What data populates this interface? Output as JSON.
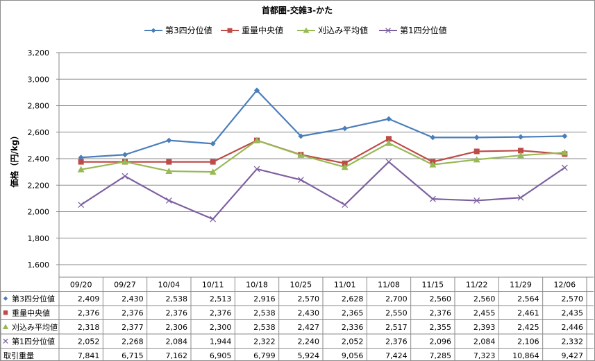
{
  "chart_data": {
    "type": "line",
    "title": "首都圏-交雑3-かた",
    "ylabel": "価格（円/kg）",
    "ylim": [
      1600,
      3200
    ],
    "ystep": 200,
    "yticks": [
      "1,600",
      "1,800",
      "2,000",
      "2,200",
      "2,400",
      "2,600",
      "2,800",
      "3,000",
      "3,200"
    ],
    "grid": true,
    "legend_position": "top",
    "categories": [
      "09/20",
      "09/27",
      "10/04",
      "10/11",
      "10/18",
      "10/25",
      "11/01",
      "11/08",
      "11/15",
      "11/22",
      "11/29",
      "12/06"
    ],
    "series": [
      {
        "name": "第3四分位値",
        "marker": "diamond",
        "color": "#4a7ebb",
        "values": [
          2409,
          2430,
          2538,
          2513,
          2916,
          2570,
          2628,
          2700,
          2560,
          2560,
          2564,
          2570
        ],
        "labels": [
          "2,409",
          "2,430",
          "2,538",
          "2,513",
          "2,916",
          "2,570",
          "2,628",
          "2,700",
          "2,560",
          "2,560",
          "2,564",
          "2,570"
        ]
      },
      {
        "name": "重量中央値",
        "marker": "square",
        "color": "#be4b48",
        "values": [
          2376,
          2376,
          2376,
          2376,
          2538,
          2430,
          2365,
          2550,
          2376,
          2455,
          2461,
          2435
        ],
        "labels": [
          "2,376",
          "2,376",
          "2,376",
          "2,376",
          "2,538",
          "2,430",
          "2,365",
          "2,550",
          "2,376",
          "2,455",
          "2,461",
          "2,435"
        ]
      },
      {
        "name": "刈込み平均値",
        "marker": "triangle",
        "color": "#98b954",
        "values": [
          2318,
          2377,
          2306,
          2300,
          2538,
          2427,
          2336,
          2517,
          2355,
          2393,
          2425,
          2446
        ],
        "labels": [
          "2,318",
          "2,377",
          "2,306",
          "2,300",
          "2,538",
          "2,427",
          "2,336",
          "2,517",
          "2,355",
          "2,393",
          "2,425",
          "2,446"
        ]
      },
      {
        "name": "第1四分位値",
        "marker": "x",
        "color": "#7d60a0",
        "values": [
          2052,
          2268,
          2084,
          1944,
          2322,
          2240,
          2052,
          2376,
          2096,
          2084,
          2106,
          2332
        ],
        "labels": [
          "2,052",
          "2,268",
          "2,084",
          "1,944",
          "2,322",
          "2,240",
          "2,052",
          "2,376",
          "2,096",
          "2,084",
          "2,106",
          "2,332"
        ]
      }
    ],
    "table_extra_row": {
      "name": "取引重量",
      "labels": [
        "7,841",
        "6,715",
        "7,162",
        "6,905",
        "6,799",
        "5,924",
        "9,056",
        "7,424",
        "7,285",
        "7,323",
        "10,864",
        "9,427"
      ]
    }
  }
}
